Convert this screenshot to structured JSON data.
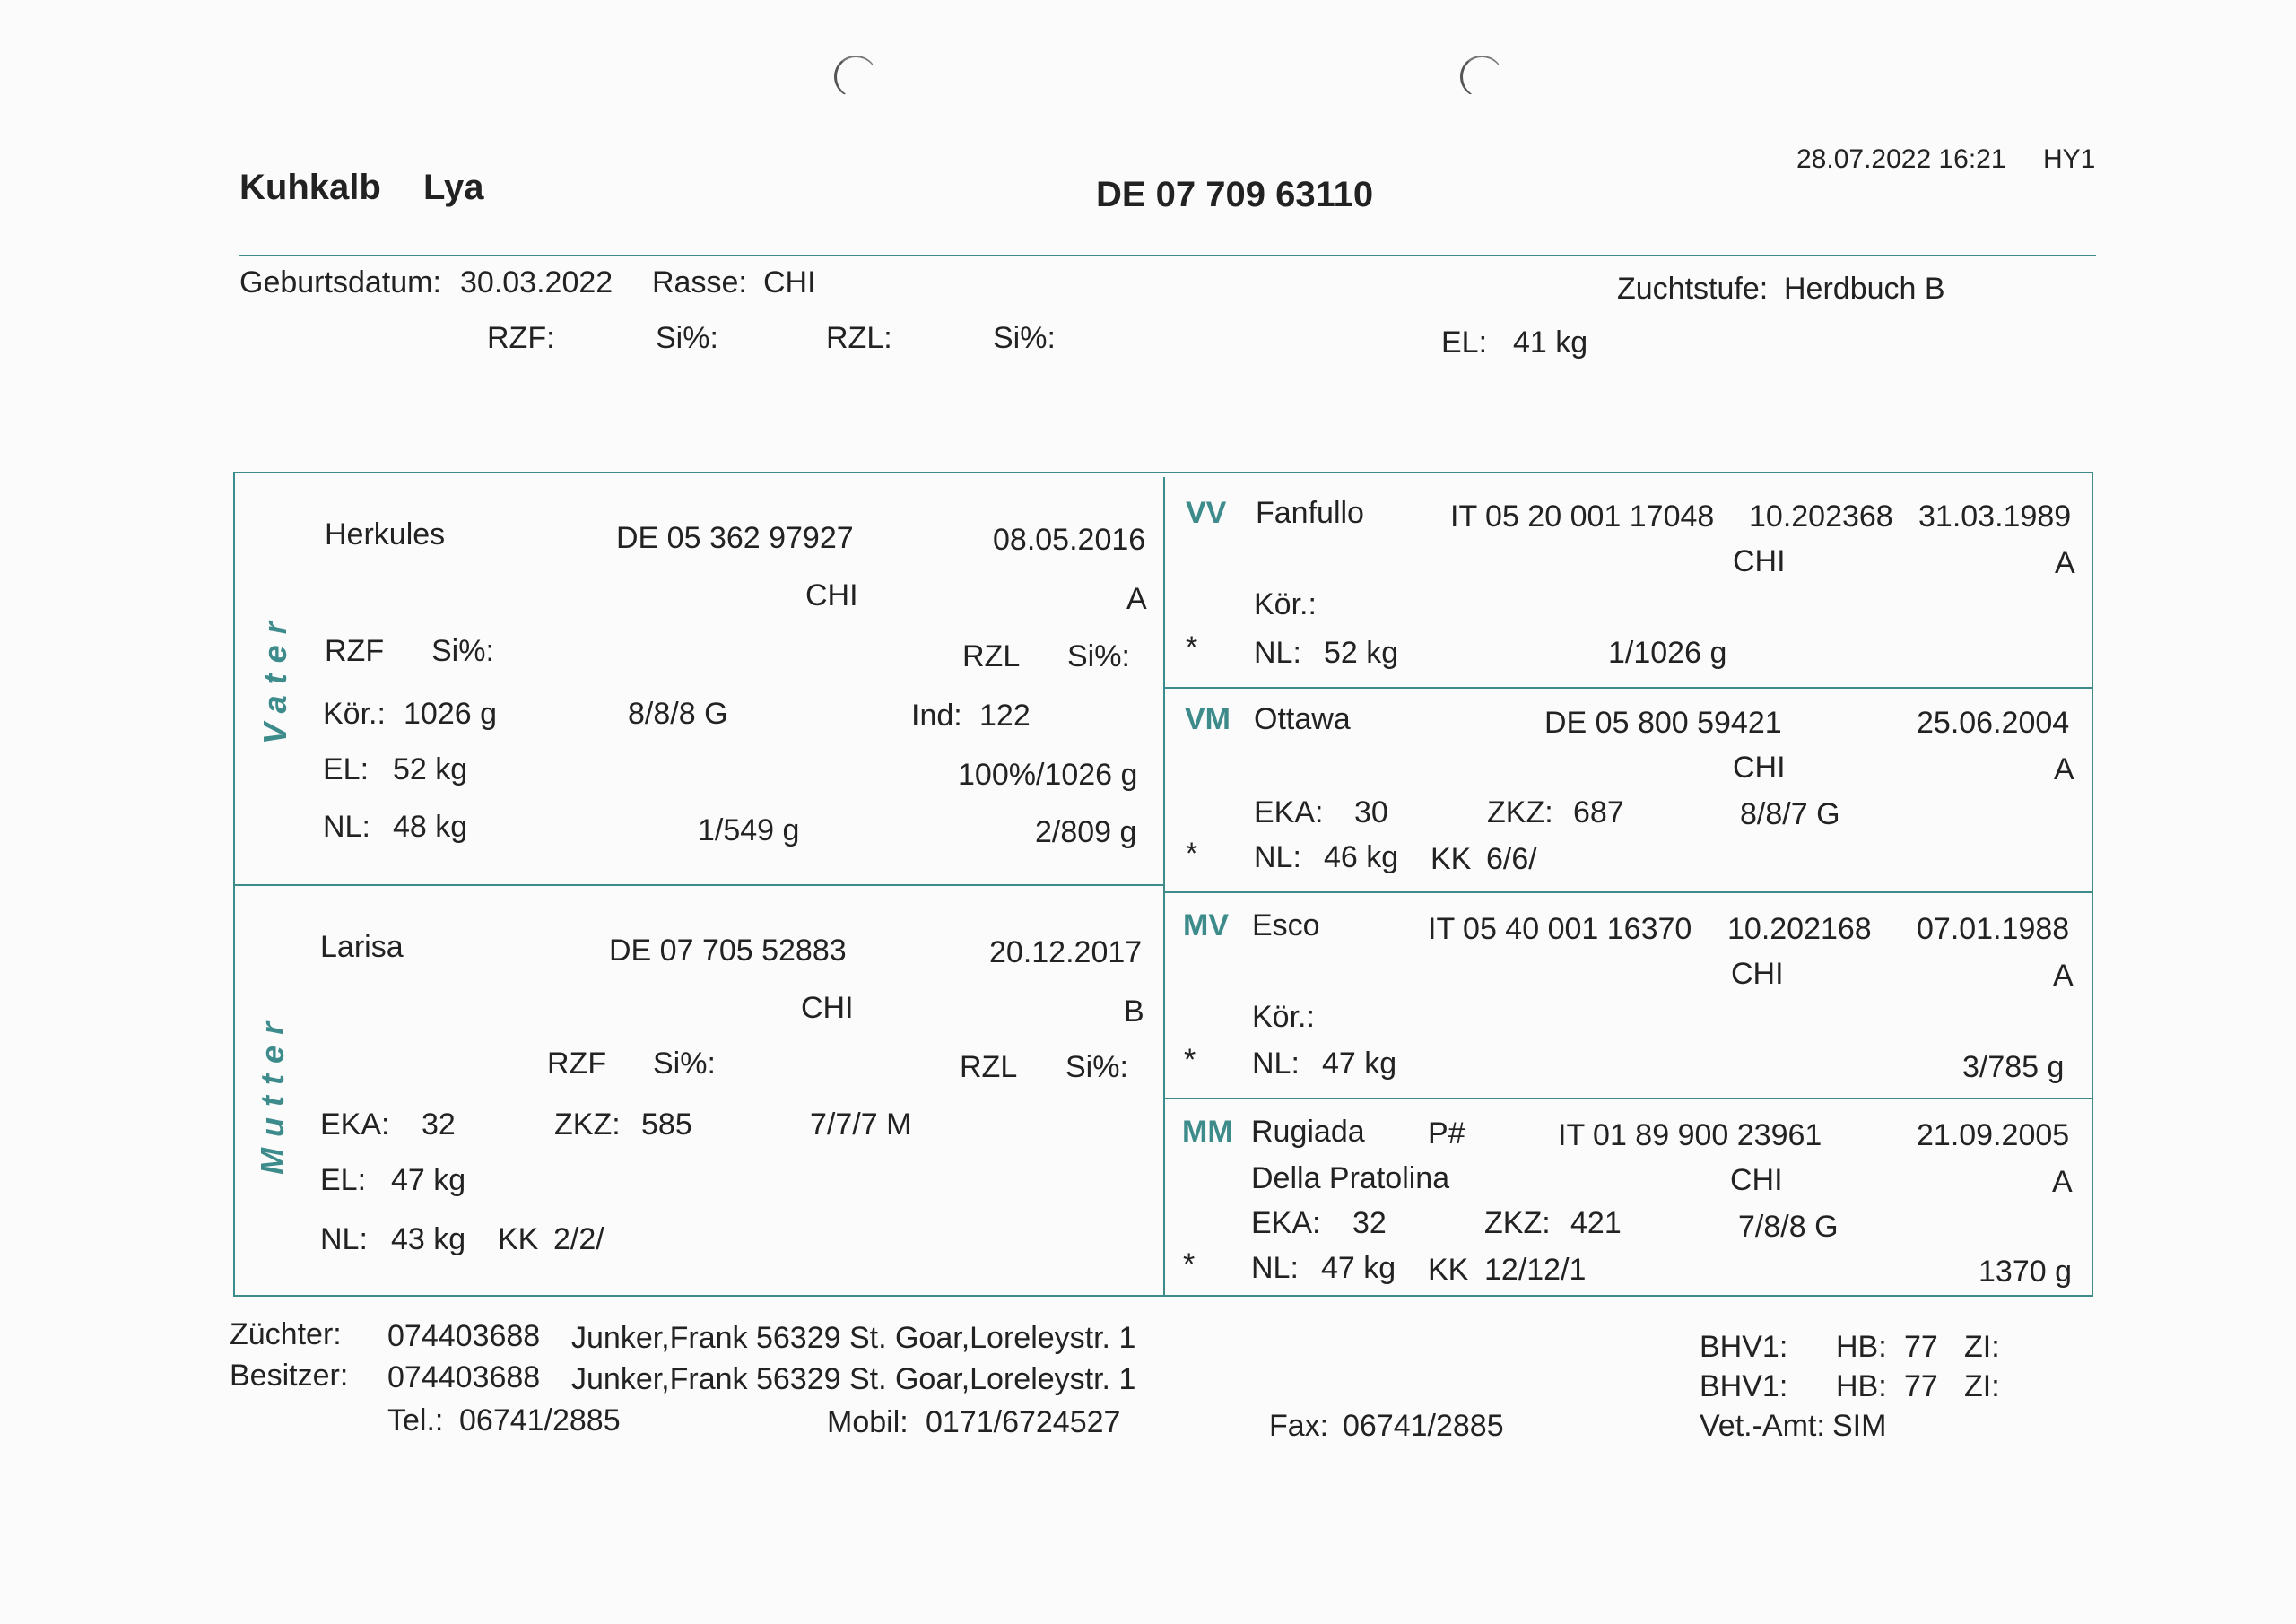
{
  "header": {
    "title_kind": "Kuhkalb",
    "title_name": "Lya",
    "ear_tag": "DE 07 709 63110",
    "printed_at": "28.07.2022 16:21",
    "printer_code": "HY1"
  },
  "animal": {
    "birth_label": "Geburtsdatum:",
    "birth": "30.03.2022",
    "breed_label": "Rasse:",
    "breed": "CHI",
    "stage_label": "Zuchtstufe:",
    "stage": "Herdbuch B",
    "rzf_label": "RZF:",
    "si1_label": "Si%:",
    "rzl_label": "RZL:",
    "si2_label": "Si%:",
    "el_label": "EL:",
    "el": "41 kg"
  },
  "vater": {
    "side_label": "Vater",
    "name": "Herkules",
    "id": "DE 05 362 97927",
    "date": "08.05.2016",
    "breed": "CHI",
    "grade": "A",
    "rzf": "RZF",
    "si1": "Si%:",
    "rzl": "RZL",
    "si2": "Si%:",
    "kor_label": "Kör.:",
    "kor": "1026 g",
    "score": "8/8/8 G",
    "ind_label": "Ind:",
    "ind": "122",
    "el_label": "EL:",
    "el": "52 kg",
    "pct": "100%/1026 g",
    "nl_label": "NL:",
    "nl": "48 kg",
    "v1": "1/549 g",
    "v2": "2/809 g"
  },
  "mutter": {
    "side_label": "Mutter",
    "name": "Larisa",
    "id": "DE 07 705 52883",
    "date": "20.12.2017",
    "breed": "CHI",
    "grade": "B",
    "rzf": "RZF",
    "si1": "Si%:",
    "rzl": "RZL",
    "si2": "Si%:",
    "eka_label": "EKA:",
    "eka": "32",
    "zkz_label": "ZKZ:",
    "zkz": "585",
    "score": "7/7/7 M",
    "el_label": "EL:",
    "el": "47 kg",
    "nl_label": "NL:",
    "nl": "43 kg",
    "kk_label": "KK",
    "kk": "2/2/"
  },
  "vv": {
    "code": "VV",
    "name": "Fanfullo",
    "id": "IT 05 20 001 17048",
    "num": "10.202368",
    "date": "31.03.1989",
    "breed": "CHI",
    "grade": "A",
    "kor_label": "Kör.:",
    "star": "*",
    "nl_label": "NL:",
    "nl": "52 kg",
    "v": "1/1026 g"
  },
  "vm": {
    "code": "VM",
    "name": "Ottawa",
    "id": "DE 05 800 59421",
    "date": "25.06.2004",
    "breed": "CHI",
    "grade": "A",
    "eka_label": "EKA:",
    "eka": "30",
    "zkz_label": "ZKZ:",
    "zkz": "687",
    "score": "8/8/7 G",
    "star": "*",
    "nl_label": "NL:",
    "nl": "46 kg",
    "kk_label": "KK",
    "kk": "6/6/"
  },
  "mv": {
    "code": "MV",
    "name": "Esco",
    "id": "IT 05 40 001 16370",
    "num": "10.202168",
    "date": "07.01.1988",
    "breed": "CHI",
    "grade": "A",
    "kor_label": "Kör.:",
    "star": "*",
    "nl_label": "NL:",
    "nl": "47 kg",
    "v": "3/785 g"
  },
  "mm": {
    "code": "MM",
    "name": "Rugiada",
    "name2": "Della Pratolina",
    "pflag": "P#",
    "id": "IT 01 89 900 23961",
    "date": "21.09.2005",
    "breed": "CHI",
    "grade": "A",
    "eka_label": "EKA:",
    "eka": "32",
    "zkz_label": "ZKZ:",
    "zkz": "421",
    "score": "7/8/8 G",
    "star": "*",
    "nl_label": "NL:",
    "nl": "47 kg",
    "kk_label": "KK",
    "kk": "12/12/1",
    "v": "1370 g"
  },
  "footer": {
    "zuechter_label": "Züchter:",
    "zuechter_nr": "074403688",
    "zuechter_addr": "Junker,Frank 56329 St. Goar,Loreleystr. 1",
    "besitzer_label": "Besitzer:",
    "besitzer_nr": "074403688",
    "besitzer_addr": "Junker,Frank 56329 St. Goar,Loreleystr. 1",
    "tel_label": "Tel.:",
    "tel": "06741/2885",
    "mobil_label": "Mobil:",
    "mobil": "0171/6724527",
    "fax_label": "Fax:",
    "fax": "06741/2885",
    "bhv1_label": "BHV1:",
    "hb_label": "HB:",
    "hb": "77",
    "zi_label": "ZI:",
    "bhv2_label": "BHV1:",
    "hb2_label": "HB:",
    "hb2": "77",
    "zi2_label": "ZI:",
    "vet_label": "Vet.-Amt:",
    "vet": "SIM"
  }
}
